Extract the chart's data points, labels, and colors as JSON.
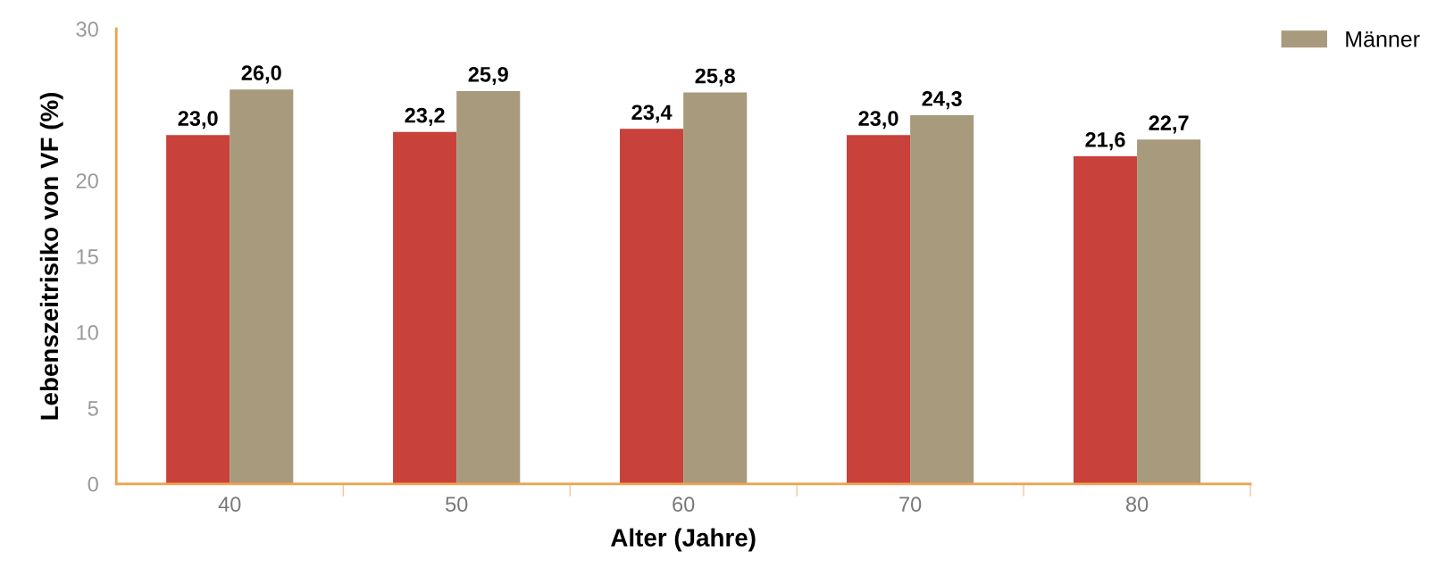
{
  "chart_data": {
    "type": "bar",
    "xlabel": "Alter (Jahre)",
    "ylabel": "Lebenszeitrisiko von VF (%)",
    "categories": [
      "40",
      "50",
      "60",
      "70",
      "80"
    ],
    "series": [
      {
        "color": "#c8413a",
        "values": [
          23.0,
          23.2,
          23.4,
          23.0,
          21.6
        ],
        "value_labels": [
          "23,0",
          "23,2",
          "23,4",
          "23,0",
          "21,6"
        ]
      },
      {
        "name": "Männer",
        "color": "#a89a7c",
        "values": [
          26.0,
          25.9,
          25.8,
          24.3,
          22.7
        ],
        "value_labels": [
          "26,0",
          "25,9",
          "25,8",
          "24,3",
          "22,7"
        ]
      }
    ],
    "ylim": [
      0,
      30
    ],
    "yticks": [
      0,
      5,
      10,
      15,
      20,
      30
    ],
    "grid": false,
    "legend": "top right"
  }
}
